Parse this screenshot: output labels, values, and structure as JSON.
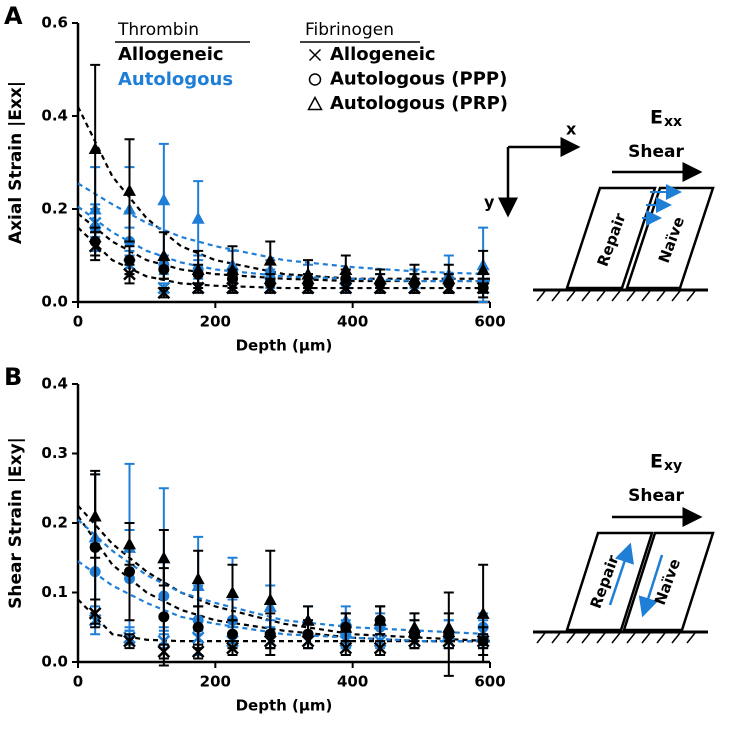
{
  "chart_data": [
    {
      "type": "scatter",
      "panel": "A",
      "x_label": "Depth (μm)",
      "y_label": "Axial Strain |Exx|",
      "xlim": [
        0,
        600
      ],
      "xticks": [
        0,
        200,
        400,
        600
      ],
      "ylim": [
        0,
        0.6
      ],
      "yticks": [
        {
          "value": 0,
          "label": "0.0"
        },
        {
          "value": 0.2,
          "label": "0.2"
        },
        {
          "value": 0.4,
          "label": "0.4"
        },
        {
          "value": 0.6,
          "label": "0.6"
        }
      ],
      "legend": {
        "thrombin": {
          "title": "Thrombin",
          "items": [
            {
              "label": "Allogeneic",
              "color": "#000000"
            },
            {
              "label": "Autologous",
              "color": "#1f7fd6"
            }
          ]
        },
        "fibrinogen": {
          "title": "Fibrinogen",
          "items": [
            {
              "label": "Allogeneic",
              "marker": "x"
            },
            {
              "label": "Autologous (PPP)",
              "marker": "circle"
            },
            {
              "label": "Autologous (PRP)",
              "marker": "triangle"
            }
          ]
        }
      },
      "x": [
        25,
        75,
        125,
        175,
        225,
        280,
        335,
        390,
        440,
        490,
        540,
        590
      ],
      "series": [
        {
          "color": "#1f7fd6",
          "marker": "triangle",
          "values": [
            0.2,
            0.2,
            0.22,
            0.18,
            0.08,
            0.07,
            0.06,
            0.05,
            0.05,
            0.05,
            0.06,
            0.08
          ],
          "errors": [
            0.09,
            0.09,
            0.12,
            0.08,
            0.03,
            0.02,
            0.02,
            0.02,
            0.02,
            0.02,
            0.04,
            0.08
          ]
        },
        {
          "color": "#1f7fd6",
          "marker": "circle",
          "values": [
            0.16,
            0.13,
            0.08,
            0.07,
            0.05,
            0.05,
            0.04,
            0.04,
            0.04,
            0.04,
            0.04,
            0.04
          ],
          "errors": [
            0.05,
            0.03,
            0.02,
            0.02,
            0.02,
            0.02,
            0.02,
            0.02,
            0.02,
            0.02,
            0.02,
            0.02
          ]
        },
        {
          "color": "#1f7fd6",
          "marker": "x",
          "values": [
            0.17,
            0.08,
            0.03,
            0.03,
            0.03,
            0.03,
            0.03,
            0.03,
            0.03,
            0.03,
            0.03,
            0.03
          ],
          "errors": [
            0.03,
            0.02,
            0.01,
            0.01,
            0.01,
            0.01,
            0.01,
            0.01,
            0.01,
            0.01,
            0.01,
            0.01
          ]
        },
        {
          "color": "#000000",
          "marker": "triangle",
          "values": [
            0.33,
            0.24,
            0.1,
            0.07,
            0.07,
            0.09,
            0.06,
            0.07,
            0.05,
            0.05,
            0.05,
            0.07
          ],
          "errors": [
            0.18,
            0.11,
            0.05,
            0.04,
            0.05,
            0.04,
            0.03,
            0.03,
            0.02,
            0.03,
            0.03,
            0.04
          ]
        },
        {
          "color": "#000000",
          "marker": "circle",
          "values": [
            0.13,
            0.09,
            0.07,
            0.06,
            0.05,
            0.04,
            0.04,
            0.05,
            0.04,
            0.04,
            0.04,
            0.03
          ],
          "errors": [
            0.03,
            0.03,
            0.02,
            0.02,
            0.02,
            0.02,
            0.02,
            0.02,
            0.02,
            0.02,
            0.02,
            0.02
          ]
        },
        {
          "color": "#000000",
          "marker": "x",
          "values": [
            0.12,
            0.06,
            0.02,
            0.03,
            0.03,
            0.03,
            0.03,
            0.03,
            0.03,
            0.03,
            0.03,
            0.03
          ],
          "errors": [
            0.03,
            0.02,
            0.01,
            0.01,
            0.01,
            0.01,
            0.01,
            0.01,
            0.01,
            0.01,
            0.01,
            0.01
          ]
        }
      ],
      "fit_x": [
        0,
        50,
        100,
        150,
        200,
        300,
        400,
        500,
        600
      ],
      "fits": [
        {
          "color": "#000000",
          "values": [
            0.42,
            0.27,
            0.18,
            0.12,
            0.09,
            0.06,
            0.05,
            0.05,
            0.05
          ]
        },
        {
          "color": "#000000",
          "values": [
            0.19,
            0.13,
            0.09,
            0.07,
            0.06,
            0.05,
            0.045,
            0.045,
            0.045
          ]
        },
        {
          "color": "#000000",
          "values": [
            0.16,
            0.09,
            0.055,
            0.04,
            0.035,
            0.03,
            0.03,
            0.03,
            0.03
          ]
        },
        {
          "color": "#1f7fd6",
          "values": [
            0.255,
            0.21,
            0.17,
            0.14,
            0.12,
            0.09,
            0.075,
            0.065,
            0.06
          ]
        },
        {
          "color": "#1f7fd6",
          "values": [
            0.205,
            0.15,
            0.11,
            0.085,
            0.07,
            0.055,
            0.05,
            0.045,
            0.045
          ]
        }
      ],
      "diagram": {
        "symbol": "E",
        "subscript": "xx",
        "x_axis": "x",
        "y_axis": "y",
        "shear": "Shear",
        "repair": "Repair",
        "naive": "Naïve"
      }
    },
    {
      "type": "scatter",
      "panel": "B",
      "x_label": "Depth (μm)",
      "y_label": "Shear Strain |Exy|",
      "xlim": [
        0,
        600
      ],
      "xticks": [
        0,
        200,
        400,
        600
      ],
      "ylim": [
        0,
        0.4
      ],
      "yticks": [
        {
          "value": 0,
          "label": "0.0"
        },
        {
          "value": 0.1,
          "label": "0.1"
        },
        {
          "value": 0.2,
          "label": "0.2"
        },
        {
          "value": 0.3,
          "label": "0.3"
        },
        {
          "value": 0.4,
          "label": "0.4"
        }
      ],
      "x": [
        25,
        75,
        125,
        175,
        225,
        280,
        335,
        390,
        440,
        490,
        540,
        590
      ],
      "series": [
        {
          "color": "#1f7fd6",
          "marker": "triangle",
          "values": [
            0.18,
            0.165,
            0.15,
            0.11,
            0.1,
            0.08,
            0.06,
            0.06,
            0.06,
            0.05,
            0.04,
            0.04
          ],
          "errors": [
            0.09,
            0.12,
            0.1,
            0.07,
            0.05,
            0.03,
            0.02,
            0.02,
            0.02,
            0.02,
            0.02,
            0.02
          ]
        },
        {
          "color": "#1f7fd6",
          "marker": "circle",
          "values": [
            0.13,
            0.12,
            0.095,
            0.06,
            0.06,
            0.04,
            0.04,
            0.04,
            0.05,
            0.04,
            0.04,
            0.05
          ],
          "errors": [
            0.04,
            0.07,
            0.05,
            0.05,
            0.03,
            0.02,
            0.02,
            0.02,
            0.02,
            0.02,
            0.02,
            0.02
          ]
        },
        {
          "color": "#1f7fd6",
          "marker": "x",
          "values": [
            0.06,
            0.035,
            0.03,
            0.035,
            0.03,
            0.03,
            0.03,
            0.03,
            0.03,
            0.03,
            0.03,
            0.03
          ],
          "errors": [
            0.02,
            0.01,
            0.01,
            0.01,
            0.01,
            0.01,
            0.01,
            0.01,
            0.01,
            0.01,
            0.01,
            0.01
          ]
        },
        {
          "color": "#000000",
          "marker": "triangle",
          "values": [
            0.21,
            0.17,
            0.15,
            0.12,
            0.1,
            0.09,
            0.06,
            0.05,
            0.06,
            0.05,
            0.05,
            0.07
          ],
          "errors": [
            0.06,
            0.03,
            0.04,
            0.04,
            0.04,
            0.07,
            0.02,
            0.02,
            0.02,
            0.02,
            0.02,
            0.07
          ]
        },
        {
          "color": "#000000",
          "marker": "circle",
          "values": [
            0.165,
            0.13,
            0.065,
            0.05,
            0.04,
            0.04,
            0.04,
            0.05,
            0.06,
            0.04,
            0.04,
            0.03
          ],
          "errors": [
            0.11,
            0.07,
            0.07,
            0.03,
            0.02,
            0.03,
            0.02,
            0.02,
            0.02,
            0.02,
            0.06,
            0.02
          ]
        },
        {
          "color": "#000000",
          "marker": "x",
          "values": [
            0.07,
            0.03,
            0.015,
            0.015,
            0.02,
            0.03,
            0.03,
            0.02,
            0.02,
            0.03,
            0.03,
            0.03
          ],
          "errors": [
            0.02,
            0.01,
            0.01,
            0.01,
            0.01,
            0.01,
            0.01,
            0.01,
            0.01,
            0.01,
            0.01,
            0.01
          ]
        }
      ],
      "fit_x": [
        0,
        50,
        100,
        150,
        200,
        300,
        400,
        500,
        600
      ],
      "fits": [
        {
          "color": "#000000",
          "values": [
            0.225,
            0.17,
            0.13,
            0.1,
            0.08,
            0.055,
            0.04,
            0.035,
            0.03
          ]
        },
        {
          "color": "#000000",
          "values": [
            0.21,
            0.14,
            0.1,
            0.075,
            0.06,
            0.045,
            0.035,
            0.03,
            0.03
          ]
        },
        {
          "color": "#000000",
          "values": [
            0.09,
            0.04,
            0.032,
            0.03,
            0.03,
            0.03,
            0.03,
            0.03,
            0.03
          ]
        },
        {
          "color": "#1f7fd6",
          "values": [
            0.205,
            0.16,
            0.125,
            0.1,
            0.085,
            0.06,
            0.05,
            0.045,
            0.04
          ]
        },
        {
          "color": "#1f7fd6",
          "values": [
            0.145,
            0.11,
            0.085,
            0.065,
            0.055,
            0.04,
            0.035,
            0.03,
            0.03
          ]
        }
      ],
      "diagram": {
        "symbol": "E",
        "subscript": "xy",
        "shear": "Shear",
        "repair": "Repair",
        "naive": "Naïve"
      }
    }
  ]
}
